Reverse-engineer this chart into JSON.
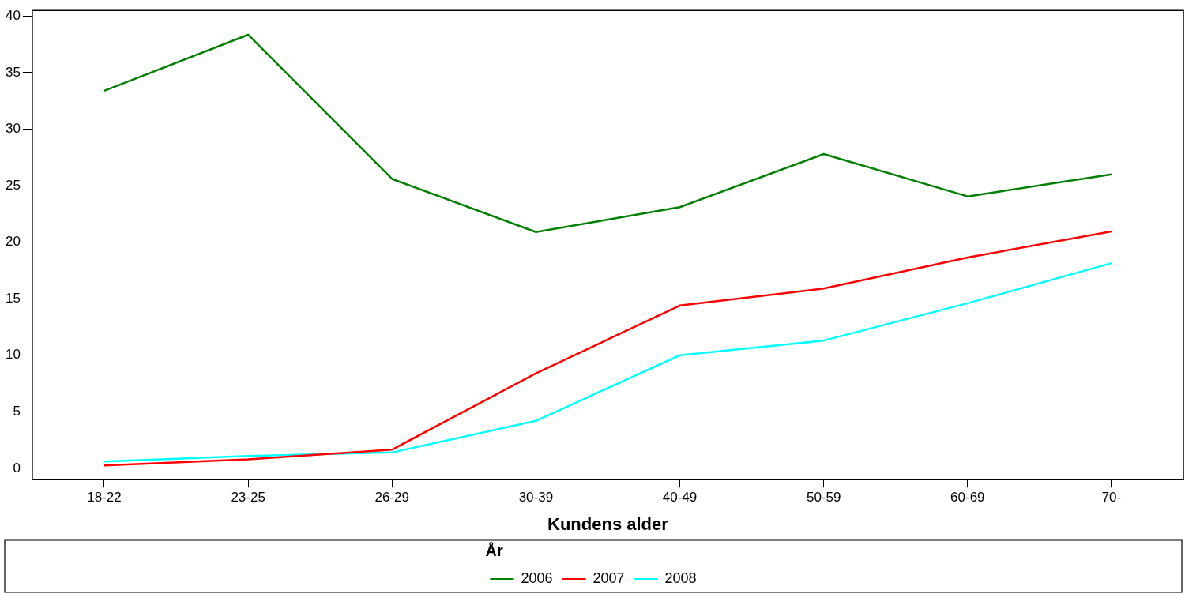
{
  "chart_data": {
    "type": "line",
    "xlabel": "Kundens alder",
    "legend_title": "År",
    "legend": "bottom",
    "categories": [
      "18-22",
      "23-25",
      "26-29",
      "30-39",
      "40-49",
      "50-59",
      "60-69",
      "70-"
    ],
    "ylim": [
      -1,
      40.5
    ],
    "yticks": [
      0,
      5,
      10,
      15,
      20,
      25,
      30,
      35,
      40
    ],
    "series": [
      {
        "name": "2006",
        "color": "#008000",
        "values": [
          33.4,
          38.35,
          25.6,
          20.9,
          23.1,
          27.8,
          24.05,
          26.0
        ]
      },
      {
        "name": "2007",
        "color": "#ff0000",
        "values": [
          0.26,
          0.8,
          1.65,
          8.4,
          14.4,
          15.9,
          18.65,
          20.95
        ]
      },
      {
        "name": "2008",
        "color": "#00ffff",
        "values": [
          0.6,
          1.1,
          1.4,
          4.2,
          10.0,
          11.3,
          14.6,
          18.15
        ]
      }
    ]
  }
}
